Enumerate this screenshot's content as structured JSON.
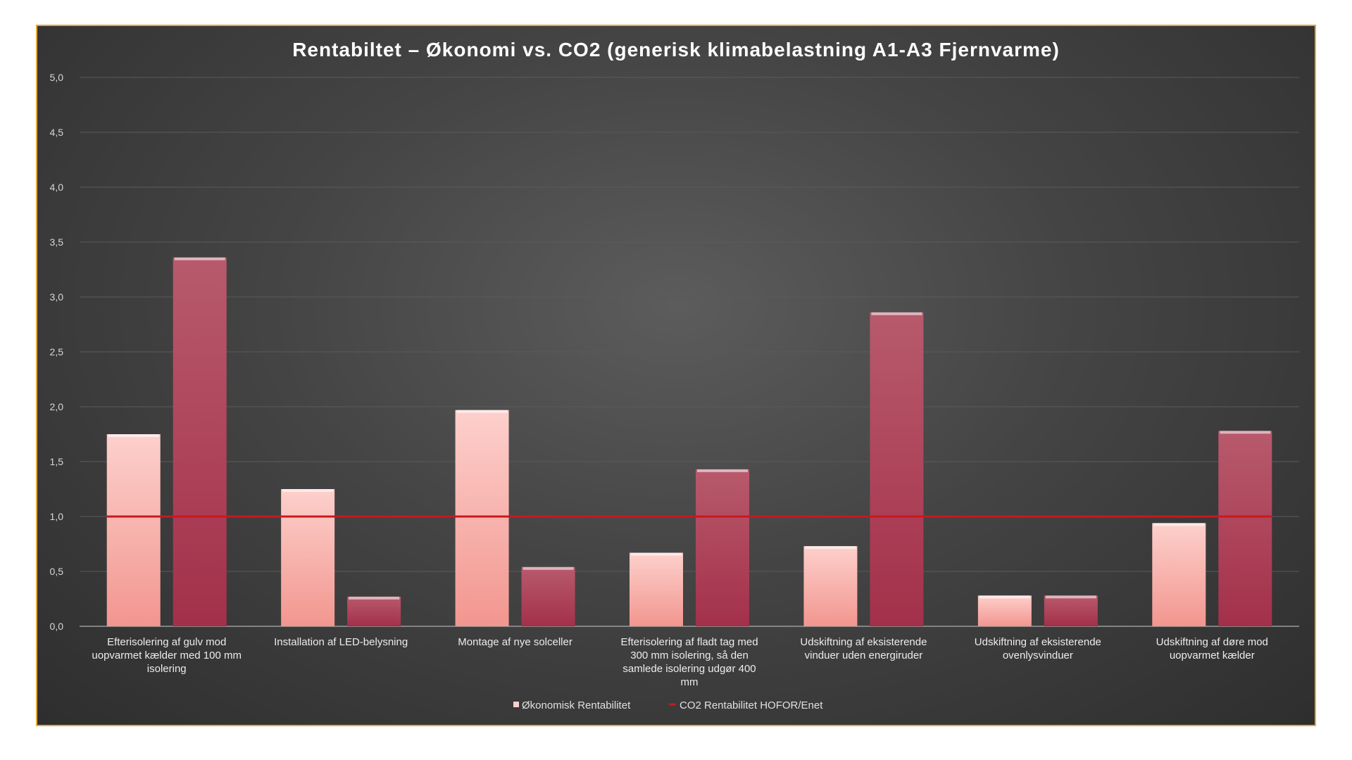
{
  "chart_data": {
    "type": "bar",
    "title": "Rentabiltet – Økonomi vs. CO2 (generisk klimabelastning A1-A3 Fjernvarme)",
    "xlabel": "",
    "ylabel": "",
    "ylim": [
      0,
      5
    ],
    "yticks": [
      "0,0",
      "0,5",
      "1,0",
      "1,5",
      "2,0",
      "2,5",
      "3,0",
      "3,5",
      "4,0",
      "4,5",
      "5,0"
    ],
    "categories": [
      [
        "Efterisolering af gulv mod",
        "uopvarmet kælder med 100 mm",
        "isolering"
      ],
      [
        "Installation af LED-belysning"
      ],
      [
        "Montage af nye solceller"
      ],
      [
        "Efterisolering af fladt tag med",
        "300 mm isolering, så den",
        "samlede isolering udgør 400",
        "mm"
      ],
      [
        "Udskiftning af eksisterende",
        "vinduer uden energiruder"
      ],
      [
        "Udskiftning af eksisterende",
        "ovenlysvinduer"
      ],
      [
        "Udskiftning af døre mod",
        "uopvarmet kælder"
      ]
    ],
    "series": [
      {
        "name": "Økonomisk Rentabilitet",
        "values": [
          1.75,
          1.25,
          1.97,
          0.67,
          0.73,
          0.28,
          0.94
        ]
      },
      {
        "name": "CO2 Rentabilitet HOFOR/Enet",
        "values": [
          3.36,
          0.27,
          0.54,
          1.43,
          2.86,
          0.28,
          1.78
        ]
      }
    ],
    "reference_line": {
      "value": 1.0,
      "color": "#c8181e"
    },
    "grid": true,
    "legend": "bottom",
    "colors": {
      "series1_top": "#fdd0cc",
      "series1_bottom": "#f2968f",
      "series2_top": "#b85a6c",
      "series2_bottom": "#a3304a",
      "frame": "#e8a83a",
      "reference": "#c8181e"
    }
  }
}
